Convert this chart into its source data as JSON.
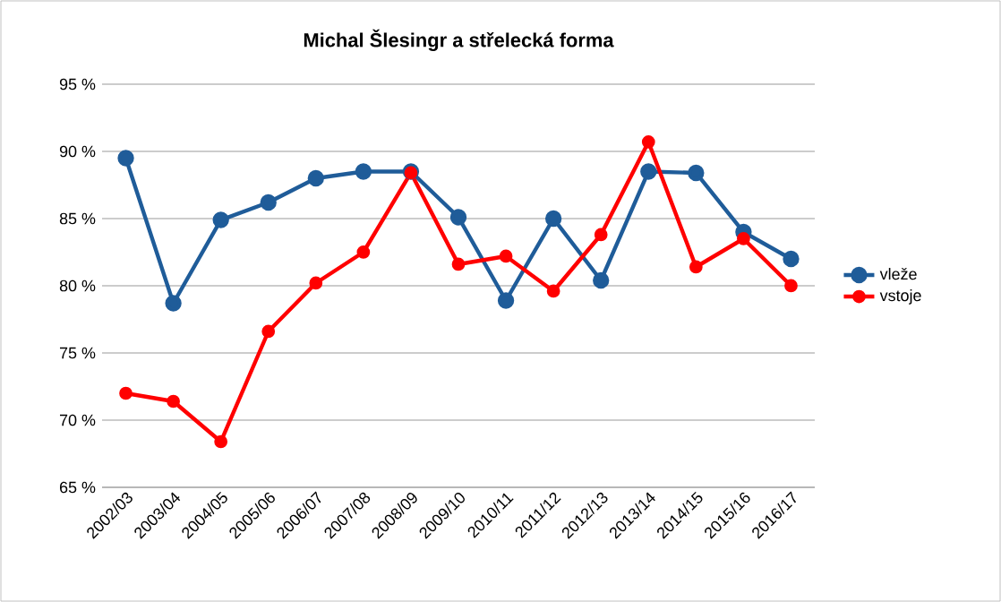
{
  "chart_data": {
    "type": "line",
    "title": "Michal Šlesingr a střelecká forma",
    "categories": [
      "2002/03",
      "2003/04",
      "2004/05",
      "2005/06",
      "2006/07",
      "2007/08",
      "2008/09",
      "2009/10",
      "2010/11",
      "2011/12",
      "2012/13",
      "2013/14",
      "2014/15",
      "2015/16",
      "2016/17"
    ],
    "series": [
      {
        "name": "vleže",
        "color": "#1f5c99",
        "values": [
          89.5,
          78.7,
          84.9,
          86.2,
          88.0,
          88.5,
          88.5,
          85.1,
          78.9,
          85.0,
          80.4,
          88.5,
          88.4,
          84.0,
          82.0
        ]
      },
      {
        "name": "vstoje",
        "color": "#ff0000",
        "values": [
          72.0,
          71.4,
          68.4,
          76.6,
          80.2,
          82.5,
          88.4,
          81.6,
          82.2,
          79.6,
          83.8,
          90.7,
          81.4,
          83.5,
          80.0
        ]
      }
    ],
    "ylim": [
      65,
      95
    ],
    "yticks": [
      {
        "value": 65,
        "label": "65 %"
      },
      {
        "value": 70,
        "label": "70 %"
      },
      {
        "value": 75,
        "label": "75 %"
      },
      {
        "value": 80,
        "label": "80 %"
      },
      {
        "value": 85,
        "label": "85 %"
      },
      {
        "value": 90,
        "label": "90 %"
      },
      {
        "value": 95,
        "label": "95 %"
      }
    ],
    "grid": "y",
    "legend": "right",
    "marker": "circle",
    "line_style": "solid"
  }
}
